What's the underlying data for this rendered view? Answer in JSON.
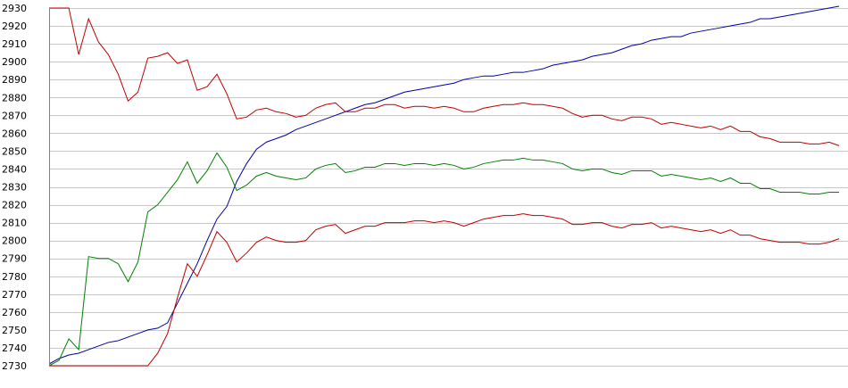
{
  "chart_data": {
    "type": "line",
    "title": "",
    "xlabel": "",
    "ylabel": "",
    "grid": true,
    "ylim": [
      2730,
      2930
    ],
    "yticks": [
      2730,
      2740,
      2750,
      2760,
      2770,
      2780,
      2790,
      2800,
      2810,
      2820,
      2830,
      2840,
      2850,
      2860,
      2870,
      2880,
      2890,
      2900,
      2910,
      2920,
      2930
    ],
    "xlim": [
      0,
      80
    ],
    "series": [
      {
        "color": "#0000a0",
        "values": [
          2731,
          2734,
          2736,
          2737,
          2739,
          2741,
          2743,
          2744,
          2746,
          2748,
          2750,
          2751,
          2754,
          2765,
          2776,
          2787,
          2800,
          2812,
          2819,
          2833,
          2843,
          2851,
          2855,
          2857,
          2859,
          2862,
          2864,
          2866,
          2868,
          2870,
          2872,
          2874,
          2876,
          2877,
          2879,
          2881,
          2883,
          2884,
          2885,
          2886,
          2887,
          2888,
          2890,
          2891,
          2892,
          2892,
          2893,
          2894,
          2894,
          2895,
          2896,
          2898,
          2899,
          2900,
          2901,
          2903,
          2904,
          2905,
          2907,
          2909,
          2910,
          2912,
          2913,
          2914,
          2914,
          2916,
          2917,
          2918,
          2919,
          2920,
          2921,
          2922,
          2924,
          2924,
          2925,
          2926,
          2927,
          2928,
          2929,
          2930,
          2931
        ]
      },
      {
        "color": "#c00000",
        "values": [
          2930,
          2930,
          2930,
          2904,
          2924,
          2911,
          2904,
          2893,
          2878,
          2883,
          2902,
          2903,
          2905,
          2899,
          2901,
          2884,
          2886,
          2893,
          2882,
          2868,
          2869,
          2873,
          2874,
          2872,
          2871,
          2869,
          2870,
          2874,
          2876,
          2877,
          2872,
          2872,
          2874,
          2874,
          2876,
          2876,
          2874,
          2875,
          2875,
          2874,
          2875,
          2874,
          2872,
          2872,
          2874,
          2875,
          2876,
          2876,
          2877,
          2876,
          2876,
          2875,
          2874,
          2871,
          2869,
          2870,
          2870,
          2868,
          2867,
          2869,
          2869,
          2868,
          2865,
          2866,
          2865,
          2864,
          2863,
          2864,
          2862,
          2864,
          2861,
          2861,
          2858,
          2857,
          2855,
          2855,
          2855,
          2854,
          2854,
          2855,
          2853
        ]
      },
      {
        "color": "#008000",
        "values": [
          2730,
          2733,
          2745,
          2739,
          2791,
          2790,
          2790,
          2787,
          2777,
          2788,
          2816,
          2820,
          2827,
          2834,
          2844,
          2832,
          2839,
          2849,
          2841,
          2828,
          2831,
          2836,
          2838,
          2836,
          2835,
          2834,
          2835,
          2840,
          2842,
          2843,
          2838,
          2839,
          2841,
          2841,
          2843,
          2843,
          2842,
          2843,
          2843,
          2842,
          2843,
          2842,
          2840,
          2841,
          2843,
          2844,
          2845,
          2845,
          2846,
          2845,
          2845,
          2844,
          2843,
          2840,
          2839,
          2840,
          2840,
          2838,
          2837,
          2839,
          2839,
          2839,
          2836,
          2837,
          2836,
          2835,
          2834,
          2835,
          2833,
          2835,
          2832,
          2832,
          2829,
          2829,
          2827,
          2827,
          2827,
          2826,
          2826,
          2827,
          2827
        ]
      },
      {
        "color": "#c00000",
        "values": [
          2730,
          2730,
          2730,
          2730,
          2730,
          2730,
          2730,
          2730,
          2730,
          2730,
          2730,
          2737,
          2748,
          2768,
          2787,
          2780,
          2792,
          2805,
          2799,
          2788,
          2793,
          2799,
          2802,
          2800,
          2799,
          2799,
          2800,
          2806,
          2808,
          2809,
          2804,
          2806,
          2808,
          2808,
          2810,
          2810,
          2810,
          2811,
          2811,
          2810,
          2811,
          2810,
          2808,
          2810,
          2812,
          2813,
          2814,
          2814,
          2815,
          2814,
          2814,
          2813,
          2812,
          2809,
          2809,
          2810,
          2810,
          2808,
          2807,
          2809,
          2809,
          2810,
          2807,
          2808,
          2807,
          2806,
          2805,
          2806,
          2804,
          2806,
          2803,
          2803,
          2801,
          2800,
          2799,
          2799,
          2799,
          2798,
          2798,
          2799,
          2801
        ]
      }
    ]
  }
}
